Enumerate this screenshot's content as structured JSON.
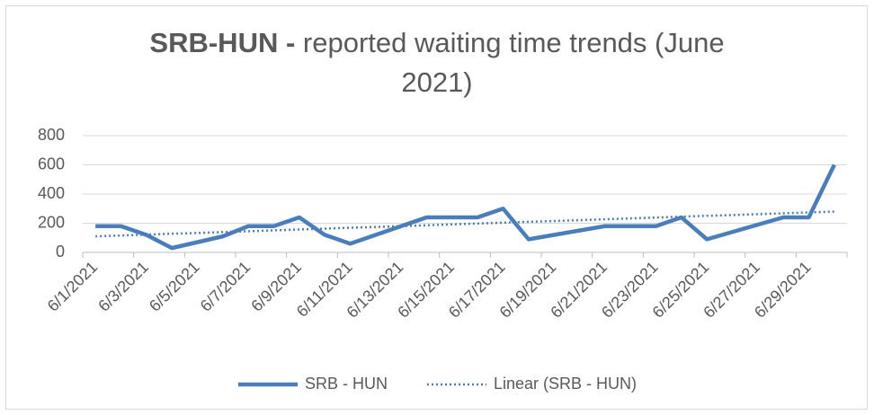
{
  "chart_data": {
    "type": "line",
    "title": {
      "bold": "SRB-HUN -",
      "text": "reported waiting time trends (June 2021)"
    },
    "categories": [
      "6/1/2021",
      null,
      "6/3/2021",
      null,
      "6/5/2021",
      null,
      "6/7/2021",
      null,
      "6/9/2021",
      null,
      "6/11/2021",
      null,
      "6/13/2021",
      null,
      "6/15/2021",
      null,
      "6/17/2021",
      null,
      "6/19/2021",
      null,
      "6/21/2021",
      null,
      "6/23/2021",
      null,
      "6/25/2021",
      null,
      "6/27/2021",
      null,
      "6/29/2021",
      null
    ],
    "series": [
      {
        "name": "SRB - HUN",
        "color": "#4a7ebb",
        "style": "solid",
        "values": [
          180,
          180,
          120,
          30,
          70,
          110,
          180,
          180,
          240,
          120,
          60,
          120,
          180,
          240,
          240,
          240,
          300,
          90,
          120,
          150,
          180,
          180,
          180,
          240,
          90,
          140,
          190,
          240,
          240,
          600
        ]
      },
      {
        "name": "Linear (SRB - HUN)",
        "color": "#4a7ebb",
        "style": "dotted",
        "values": [
          110,
          116,
          122,
          128,
          133,
          139,
          145,
          151,
          157,
          163,
          169,
          174,
          180,
          186,
          192,
          198,
          204,
          210,
          215,
          221,
          227,
          233,
          239,
          245,
          251,
          256,
          262,
          268,
          274,
          280
        ]
      }
    ],
    "ylim": [
      0,
      800
    ],
    "yticks": [
      0,
      200,
      400,
      600,
      800
    ],
    "grid": true,
    "legend": "bottom"
  }
}
